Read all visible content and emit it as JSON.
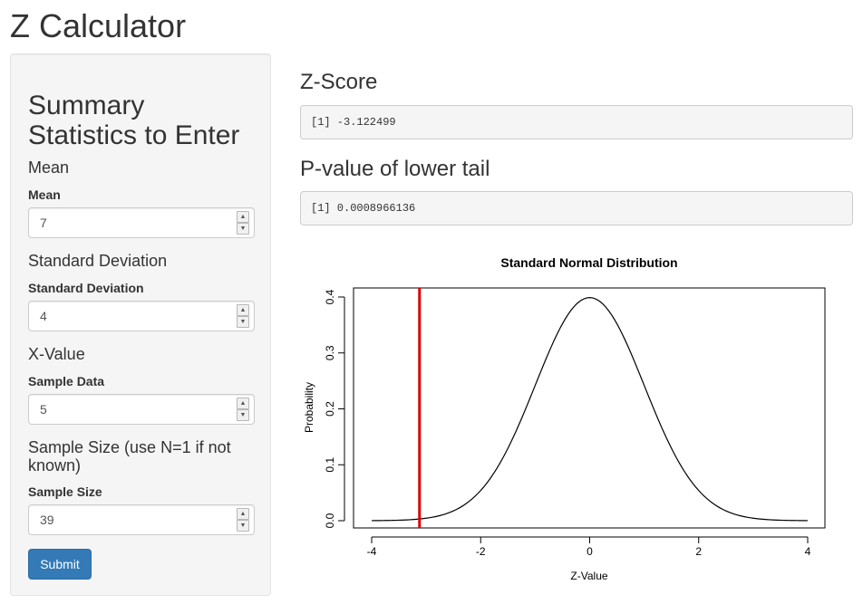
{
  "app": {
    "title": "Z Calculator"
  },
  "sidebar": {
    "heading": "Summary Statistics to Enter",
    "mean": {
      "section": "Mean",
      "label": "Mean",
      "value": "7"
    },
    "sd": {
      "section": "Standard Deviation",
      "label": "Standard Deviation",
      "value": "4"
    },
    "x": {
      "section": "X-Value",
      "label": "Sample Data",
      "value": "5"
    },
    "n": {
      "section": "Sample Size (use N=1 if not known)",
      "label": "Sample Size",
      "value": "39"
    },
    "submit_label": "Submit",
    "spinner_up": "▲",
    "spinner_down": "▼"
  },
  "outputs": {
    "zscore": {
      "title": "Z-Score",
      "text": "[1] -3.122499"
    },
    "pvalue": {
      "title": "P-value of lower tail",
      "text": "[1] 0.0008966136"
    }
  },
  "colors": {
    "primary_button": "#337ab7",
    "marker_line": "#dd0000",
    "curve": "#000000"
  },
  "chart_data": {
    "type": "line",
    "title": "Standard Normal Distribution",
    "xlabel": "Z-Value",
    "ylabel": "Probability",
    "xlim": [
      -4,
      4
    ],
    "ylim": [
      0,
      0.4
    ],
    "x_ticks": [
      "-4",
      "-2",
      "0",
      "2",
      "4"
    ],
    "y_ticks": [
      "0.0",
      "0.1",
      "0.2",
      "0.3",
      "0.4"
    ],
    "series": [
      {
        "x": [
          -4.0,
          -3.5,
          -3.0,
          -2.5,
          -2.0,
          -1.5,
          -1.0,
          -0.5,
          0.0,
          0.5,
          1.0,
          1.5,
          2.0,
          2.5,
          3.0,
          3.5,
          4.0
        ],
        "values": [
          0.0001,
          0.0009,
          0.0044,
          0.0175,
          0.054,
          0.1295,
          0.242,
          0.3521,
          0.3989,
          0.3521,
          0.242,
          0.1295,
          0.054,
          0.0175,
          0.0044,
          0.0009,
          0.0001
        ]
      }
    ],
    "vline": {
      "x": -3.122499,
      "color": "#dd0000"
    },
    "grid": false
  }
}
